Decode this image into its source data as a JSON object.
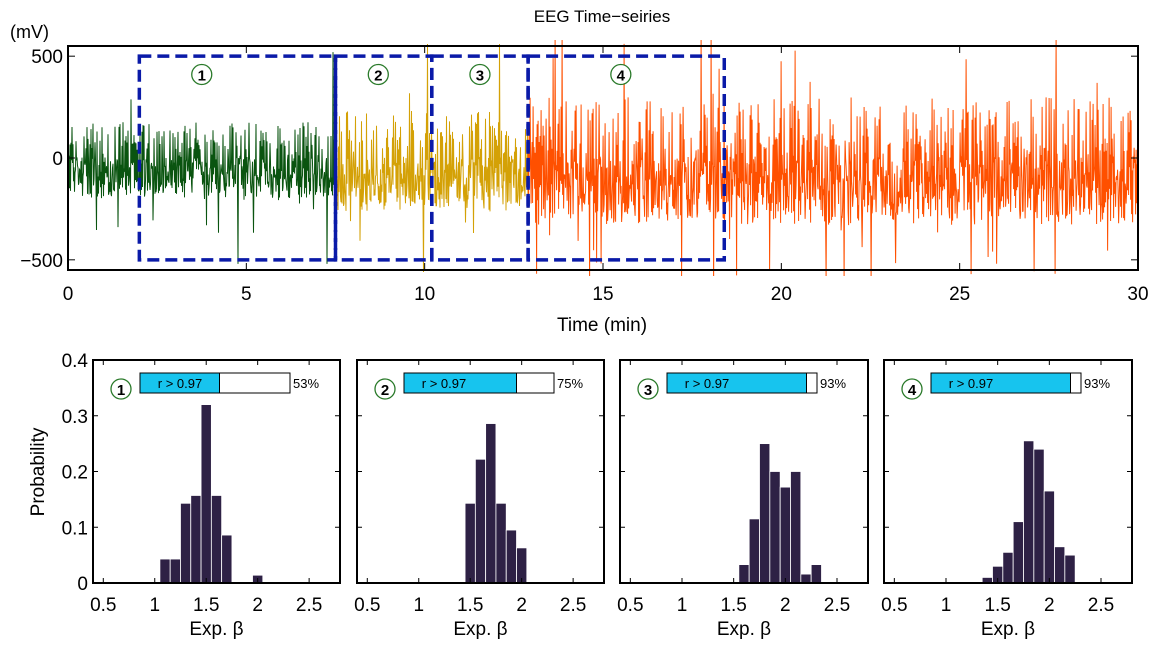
{
  "colors": {
    "segment1": "#0a5410",
    "segment2": "#d4a106",
    "segment3": "#ff5000",
    "bar": "#2e2145",
    "r_fill": "#17c4ee",
    "box": "#0a1aa8",
    "circle": "#2a7a2a"
  },
  "chart_data": [
    {
      "type": "line",
      "title": "EEG Time−seiries",
      "ylabel": "(mV)",
      "xlabel": "Time (min)",
      "xlim": [
        0,
        30
      ],
      "ylim": [
        -550,
        550
      ],
      "xticks": [
        0,
        5,
        10,
        15,
        20,
        25,
        30
      ],
      "yticks": [
        -500,
        0,
        500
      ],
      "ytick_labels": [
        "−500",
        "0",
        "500"
      ],
      "series": [
        {
          "x_range": [
            0,
            7.5
          ],
          "amplitude": 180,
          "spike": 520
        },
        {
          "x_range": [
            7.5,
            12.9
          ],
          "amplitude": 240,
          "spike": 560
        },
        {
          "x_range": [
            12.9,
            30
          ],
          "amplitude": 300,
          "spike": 600
        }
      ],
      "windows": [
        {
          "label": "1",
          "x": [
            2,
            7.5
          ],
          "y": [
            -500,
            500
          ]
        },
        {
          "label": "2",
          "x": [
            7.5,
            10.2
          ],
          "y": [
            -500,
            500
          ]
        },
        {
          "label": "3",
          "x": [
            10.2,
            12.9
          ],
          "y": [
            -500,
            500
          ]
        },
        {
          "label": "4",
          "x": [
            12.9,
            18.4
          ],
          "y": [
            -500,
            500
          ]
        }
      ]
    },
    {
      "type": "bar",
      "ylabel": "Probability",
      "xlabel": "Exp. β",
      "xlim": [
        0.4,
        2.8
      ],
      "ylim": [
        0,
        0.4
      ],
      "xticks": [
        0.5,
        1,
        1.5,
        2,
        2.5
      ],
      "yticks": [
        0,
        0.1,
        0.2,
        0.3,
        0.4
      ],
      "bin_width": 0.1,
      "panels": [
        {
          "label": "1",
          "r_text": "r > 0.97",
          "pct": 53,
          "pct_label": "53%",
          "bins": [
            1.1,
            1.2,
            1.3,
            1.4,
            1.5,
            1.6,
            1.7,
            1.8,
            1.9,
            2.0
          ],
          "values": [
            0.043,
            0.043,
            0.143,
            0.157,
            0.32,
            0.157,
            0.086,
            0,
            0,
            0.014
          ]
        },
        {
          "label": "2",
          "r_text": "r > 0.97",
          "pct": 75,
          "pct_label": "75%",
          "bins": [
            1.5,
            1.6,
            1.7,
            1.8,
            1.9,
            2.0
          ],
          "values": [
            0.143,
            0.222,
            0.286,
            0.143,
            0.095,
            0.063
          ]
        },
        {
          "label": "3",
          "r_text": "r > 0.97",
          "pct": 93,
          "pct_label": "93%",
          "bins": [
            1.6,
            1.7,
            1.8,
            1.9,
            2.0,
            2.1,
            2.2,
            2.3
          ],
          "values": [
            0.033,
            0.115,
            0.25,
            0.2,
            0.172,
            0.2,
            0.016,
            0.033
          ]
        },
        {
          "label": "4",
          "r_text": "r > 0.97",
          "pct": 93,
          "pct_label": "93%",
          "bins": [
            1.4,
            1.5,
            1.6,
            1.7,
            1.8,
            1.9,
            2.0,
            2.1,
            2.2
          ],
          "values": [
            0.01,
            0.03,
            0.055,
            0.11,
            0.255,
            0.24,
            0.165,
            0.065,
            0.05
          ]
        }
      ]
    }
  ]
}
